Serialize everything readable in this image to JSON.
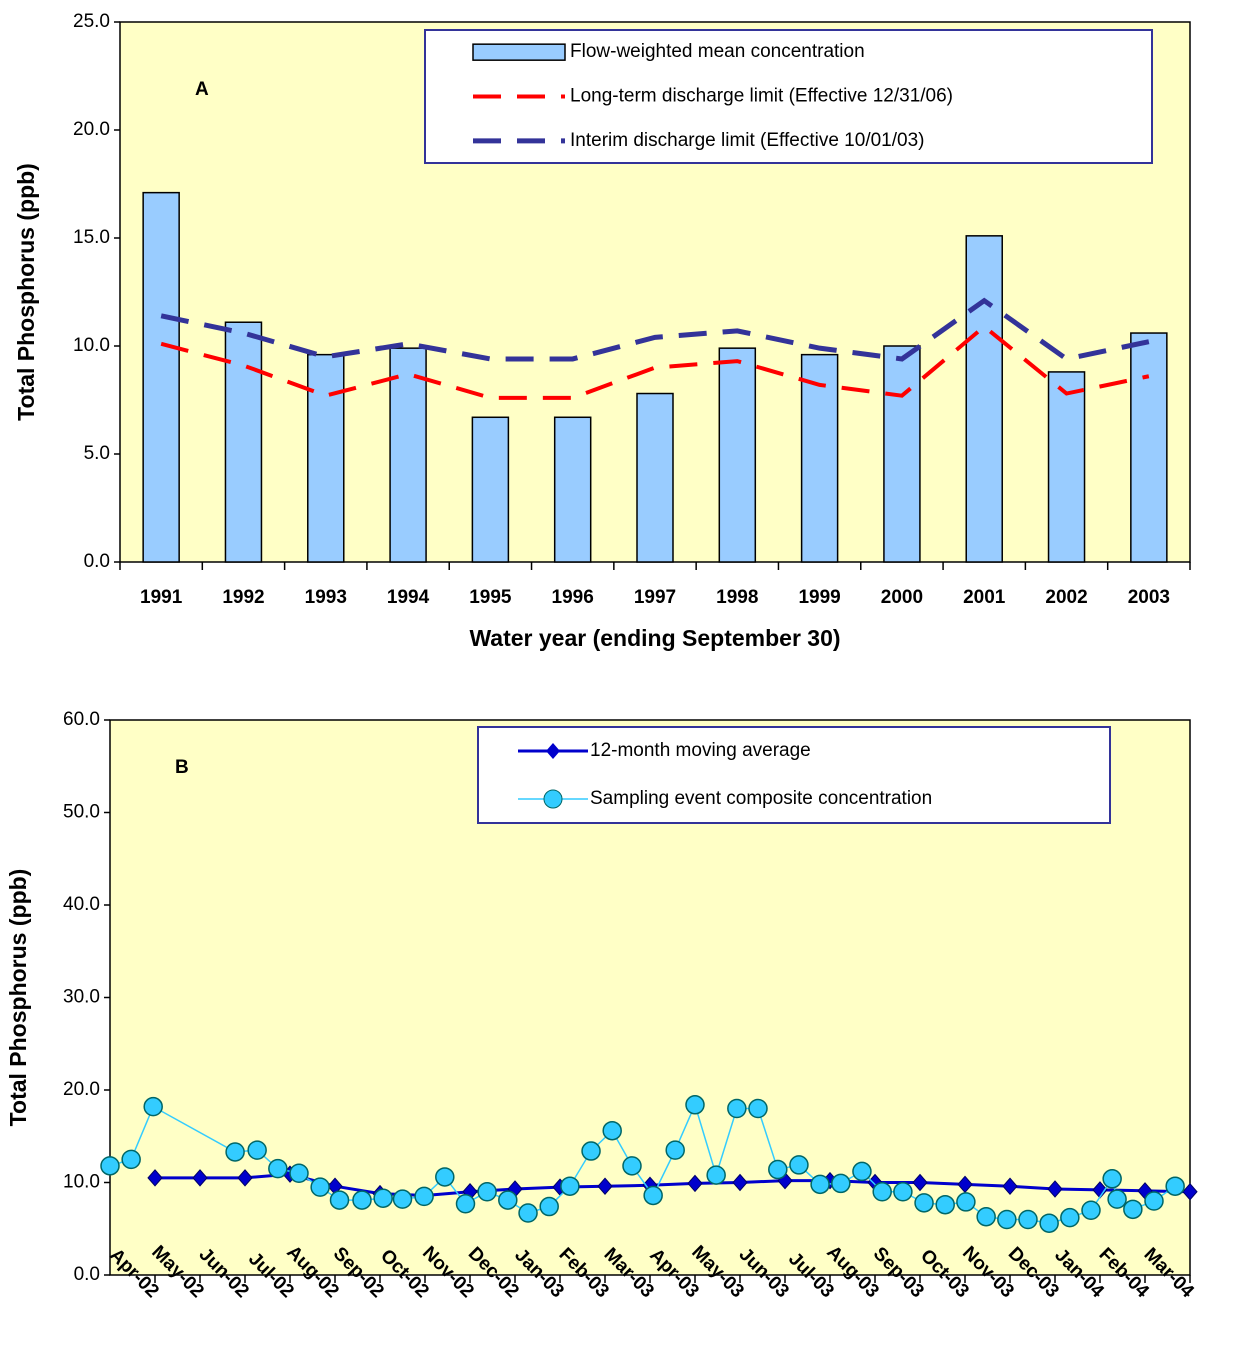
{
  "chart_data": [
    {
      "type": "bar",
      "annotation": "A",
      "y_label": "Total Phosphorus (ppb)",
      "x_label": "Water year (ending September 30)",
      "categories": [
        "1991",
        "1992",
        "1993",
        "1994",
        "1995",
        "1996",
        "1997",
        "1998",
        "1999",
        "2000",
        "2001",
        "2002",
        "2003"
      ],
      "series": [
        {
          "name": "Flow-weighted mean concentration",
          "type": "bar",
          "color": "#99ccff",
          "values": [
            17.1,
            11.1,
            9.6,
            9.9,
            6.7,
            6.7,
            7.8,
            9.9,
            9.6,
            10.0,
            15.1,
            8.8,
            10.6
          ]
        },
        {
          "name": "Long-term discharge limit (Effective 12/31/06)",
          "type": "line",
          "line_style": "dashed",
          "color": "#ff0000",
          "values": [
            10.1,
            9.1,
            7.7,
            8.7,
            7.6,
            7.6,
            9.0,
            9.3,
            8.2,
            7.7,
            10.9,
            7.8,
            8.6
          ]
        },
        {
          "name": "Interim discharge limit (Effective 10/01/03)",
          "type": "line",
          "line_style": "dashed",
          "color": "#333399",
          "values": [
            11.4,
            10.6,
            9.5,
            10.1,
            9.4,
            9.4,
            10.4,
            10.7,
            9.9,
            9.4,
            12.1,
            9.4,
            10.2
          ]
        }
      ],
      "ylim": [
        0,
        25
      ],
      "yticks": [
        {
          "value": 0,
          "label": "0.0"
        },
        {
          "value": 5,
          "label": "5.0"
        },
        {
          "value": 10,
          "label": "10.0"
        },
        {
          "value": 15,
          "label": "15.0"
        },
        {
          "value": 20,
          "label": "20.0"
        },
        {
          "value": 25,
          "label": "25.0"
        }
      ],
      "background": "#ffffc6"
    },
    {
      "type": "line",
      "annotation": "B",
      "y_label": "Total Phosphorus (ppb)",
      "xlim": [
        0,
        24
      ],
      "xticks": [
        {
          "value": 1,
          "label": "Apr-02"
        },
        {
          "value": 2,
          "label": "May-02"
        },
        {
          "value": 3,
          "label": "Jun-02"
        },
        {
          "value": 4,
          "label": "Jul-02"
        },
        {
          "value": 5,
          "label": "Aug-02"
        },
        {
          "value": 6,
          "label": "Sep-02"
        },
        {
          "value": 7,
          "label": "Oct-02"
        },
        {
          "value": 8,
          "label": "Nov-02"
        },
        {
          "value": 9,
          "label": "Dec-02"
        },
        {
          "value": 10,
          "label": "Jan-03"
        },
        {
          "value": 11,
          "label": "Feb-03"
        },
        {
          "value": 12,
          "label": "Mar-03"
        },
        {
          "value": 13,
          "label": "Apr-03"
        },
        {
          "value": 14,
          "label": "May-03"
        },
        {
          "value": 15,
          "label": "Jun-03"
        },
        {
          "value": 16,
          "label": "Jul-03"
        },
        {
          "value": 17,
          "label": "Aug-03"
        },
        {
          "value": 18,
          "label": "Sep-03"
        },
        {
          "value": 19,
          "label": "Oct-03"
        },
        {
          "value": 20,
          "label": "Nov-03"
        },
        {
          "value": 21,
          "label": "Dec-03"
        },
        {
          "value": 22,
          "label": "Jan-04"
        },
        {
          "value": 23,
          "label": "Feb-04"
        },
        {
          "value": 24,
          "label": "Mar-04"
        }
      ],
      "series": [
        {
          "name": "12-month moving average",
          "color": "#0000cc",
          "marker": "diamond",
          "x": [
            1,
            2,
            3,
            4,
            5,
            6,
            7,
            8,
            9,
            10,
            11,
            12,
            13,
            14,
            15,
            16,
            17,
            18,
            19,
            20,
            21,
            22,
            23,
            24
          ],
          "values": [
            10.5,
            10.5,
            10.5,
            10.9,
            9.6,
            8.8,
            8.6,
            9.0,
            9.3,
            9.5,
            9.6,
            9.7,
            9.9,
            10.0,
            10.2,
            10.2,
            10.0,
            10.0,
            9.8,
            9.6,
            9.3,
            9.2,
            9.1,
            9.0
          ]
        },
        {
          "name": "Sampling event composite concentration",
          "color": "#33ccff",
          "marker": "circle",
          "x": [
            0,
            0.47,
            0.96,
            2.78,
            3.27,
            3.73,
            4.2,
            4.67,
            5.1,
            5.6,
            6.07,
            6.5,
            6.98,
            7.44,
            7.9,
            8.38,
            8.84,
            9.29,
            9.76,
            10.22,
            10.69,
            11.16,
            11.6,
            12.07,
            12.56,
            13.0,
            13.47,
            13.93,
            14.4,
            14.84,
            15.31,
            15.78,
            16.24,
            16.71,
            17.16,
            17.62,
            18.09,
            18.56,
            19.02,
            19.47,
            19.93,
            20.4,
            20.87,
            21.33,
            21.8,
            22.27,
            22.38,
            22.73,
            23.2,
            23.67
          ],
          "values": [
            11.8,
            12.5,
            18.2,
            13.3,
            13.5,
            11.5,
            11.0,
            9.5,
            8.1,
            8.1,
            8.3,
            8.2,
            8.5,
            10.6,
            7.7,
            9.0,
            8.1,
            6.7,
            7.4,
            9.6,
            13.4,
            15.6,
            11.8,
            8.6,
            13.5,
            18.4,
            10.8,
            18.0,
            18.0,
            11.4,
            11.9,
            9.8,
            9.9,
            11.2,
            9.0,
            9.0,
            7.8,
            7.6,
            7.9,
            6.3,
            6.0,
            6.0,
            5.6,
            6.2,
            7.0,
            10.4,
            8.2,
            7.1,
            8.0,
            9.6
          ]
        }
      ],
      "ylim": [
        0,
        60
      ],
      "yticks": [
        {
          "value": 0,
          "label": "0.0"
        },
        {
          "value": 10,
          "label": "10.0"
        },
        {
          "value": 20,
          "label": "20.0"
        },
        {
          "value": 30,
          "label": "30.0"
        },
        {
          "value": 40,
          "label": "40.0"
        },
        {
          "value": 50,
          "label": "50.0"
        },
        {
          "value": 60,
          "label": "60.0"
        }
      ],
      "background": "#ffffc6"
    }
  ]
}
